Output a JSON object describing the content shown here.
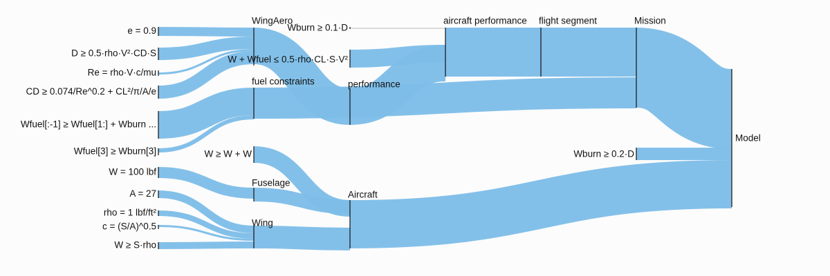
{
  "diagram": {
    "type": "sankey",
    "link_color": "#7cbde8",
    "node_color": "#111111",
    "background": "#fcfcfc",
    "nodes": [
      {
        "id": "e",
        "label": "e = 0.9"
      },
      {
        "id": "drag",
        "label": "D ≥ 0.5·rho·V²·CD·S"
      },
      {
        "id": "re",
        "label": "Re = rho·V·c/mu"
      },
      {
        "id": "cd",
        "label": "CD ≥ 0.074/Re^0.2 + CL²/π/A/e"
      },
      {
        "id": "wfuel",
        "label": "Wfuel[:-1] ≥ Wfuel[1:] + Wburn ..."
      },
      {
        "id": "wfuel3",
        "label": "Wfuel[3] ≥ Wburn[3]"
      },
      {
        "id": "w100",
        "label": "W = 100 lbf"
      },
      {
        "id": "a27",
        "label": "A = 27"
      },
      {
        "id": "rho",
        "label": "rho = 1 lbf/ft²"
      },
      {
        "id": "c",
        "label": "c = (S/A)^0.5"
      },
      {
        "id": "wsrho",
        "label": "W ≥ S·rho"
      },
      {
        "id": "wingaero",
        "label": "WingAero"
      },
      {
        "id": "lift",
        "label": "W + Wfuel ≤ 0.5·rho·CL·S·V²"
      },
      {
        "id": "fuelc",
        "label": "fuel constraints"
      },
      {
        "id": "www",
        "label": "W ≥ W + W"
      },
      {
        "id": "fuselage",
        "label": "Fuselage"
      },
      {
        "id": "wing",
        "label": "Wing"
      },
      {
        "id": "wburn01",
        "label": "Wburn ≥ 0.1·D"
      },
      {
        "id": "perf",
        "label": "performance"
      },
      {
        "id": "aircraft",
        "label": "Aircraft"
      },
      {
        "id": "acperf",
        "label": "aircraft performance"
      },
      {
        "id": "flightseg",
        "label": "flight segment"
      },
      {
        "id": "mission",
        "label": "Mission"
      },
      {
        "id": "wburn02",
        "label": "Wburn ≥ 0.2·D"
      },
      {
        "id": "model",
        "label": "Model"
      }
    ],
    "links": [
      {
        "source": "e",
        "target": "wingaero",
        "value": 1
      },
      {
        "source": "drag",
        "target": "wingaero",
        "value": 1
      },
      {
        "source": "re",
        "target": "wingaero",
        "value": 0.2
      },
      {
        "source": "cd",
        "target": "wingaero",
        "value": 1
      },
      {
        "source": "wingaero",
        "target": "perf",
        "value": 3.2
      },
      {
        "source": "wfuel",
        "target": "fuelc",
        "value": 2.5
      },
      {
        "source": "wfuel3",
        "target": "fuelc",
        "value": 0.3
      },
      {
        "source": "fuelc",
        "target": "mission",
        "value": 2.8
      },
      {
        "source": "w100",
        "target": "fuselage",
        "value": 1
      },
      {
        "source": "fuselage",
        "target": "aircraft",
        "value": 1
      },
      {
        "source": "www",
        "target": "aircraft",
        "value": 1
      },
      {
        "source": "a27",
        "target": "wing",
        "value": 0.5
      },
      {
        "source": "rho",
        "target": "wing",
        "value": 0.3
      },
      {
        "source": "c",
        "target": "wing",
        "value": 0.15
      },
      {
        "source": "wsrho",
        "target": "wing",
        "value": 0.3
      },
      {
        "source": "wing",
        "target": "aircraft",
        "value": 1.8
      },
      {
        "source": "wburn01",
        "target": "acperf",
        "value": 0.1
      },
      {
        "source": "lift",
        "target": "acperf",
        "value": 1.5
      },
      {
        "source": "perf",
        "target": "acperf",
        "value": 3.2
      },
      {
        "source": "acperf",
        "target": "flightseg",
        "value": 4.8
      },
      {
        "source": "flightseg",
        "target": "mission",
        "value": 4.8
      },
      {
        "source": "mission",
        "target": "model",
        "value": 7.6
      },
      {
        "source": "wburn02",
        "target": "model",
        "value": 1
      },
      {
        "source": "aircraft",
        "target": "model",
        "value": 3.8
      }
    ]
  }
}
